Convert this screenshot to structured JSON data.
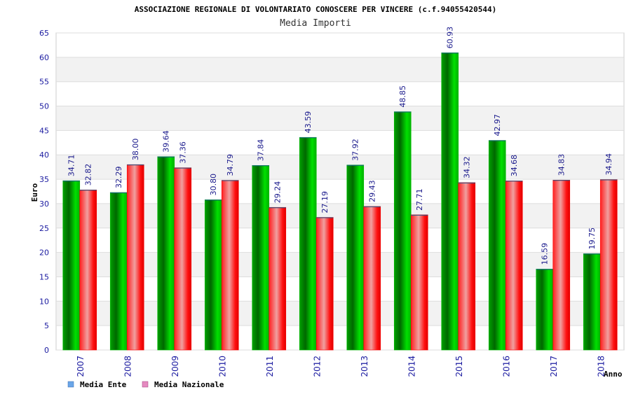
{
  "page": {
    "title": "ASSOCIAZIONE REGIONALE DI VOLONTARIATO CONOSCERE PER VINCERE (c.f.94055420544)",
    "subtitle": "Media Importi"
  },
  "chart_data": {
    "type": "bar",
    "title": "ASSOCIAZIONE REGIONALE DI VOLONTARIATO CONOSCERE PER VINCERE (c.f.94055420544)",
    "subtitle": "Media Importi",
    "xlabel": "Anno",
    "ylabel": "Euro",
    "ylim": [
      0,
      65
    ],
    "yticks": [
      0,
      5,
      10,
      15,
      20,
      25,
      30,
      35,
      40,
      45,
      50,
      55,
      60,
      65
    ],
    "ytick_labels": [
      "0",
      "5",
      "10",
      "15",
      "20",
      "25",
      "30",
      "35",
      "40",
      "45",
      "50",
      "55",
      "60",
      "65"
    ],
    "grid": true,
    "legend_position": "bottom-left",
    "categories": [
      "2007",
      "2008",
      "2009",
      "2010",
      "2011",
      "2012",
      "2013",
      "2014",
      "2015",
      "2016",
      "2017",
      "2018"
    ],
    "series": [
      {
        "name": "Media Ente",
        "color": "#00c000",
        "legend_color": "#6aa6e8",
        "values": [
          34.71,
          32.29,
          39.64,
          30.8,
          37.84,
          43.59,
          37.92,
          48.85,
          60.93,
          42.97,
          16.59,
          19.75
        ],
        "labels": [
          "34.71",
          "32.29",
          "39.64",
          "30.80",
          "37.84",
          "43.59",
          "37.92",
          "48.85",
          "60.93",
          "42.97",
          "16.59",
          "19.75"
        ]
      },
      {
        "name": "Media Nazionale",
        "color": "#ff1010",
        "legend_color": "#e58ac0",
        "values": [
          32.82,
          38.0,
          37.36,
          34.79,
          29.24,
          27.19,
          29.43,
          27.71,
          34.32,
          34.68,
          34.83,
          34.94
        ],
        "labels": [
          "32.82",
          "38.00",
          "37.36",
          "34.79",
          "29.24",
          "27.19",
          "29.43",
          "27.71",
          "34.32",
          "34.68",
          "34.83",
          "34.94"
        ]
      }
    ]
  }
}
